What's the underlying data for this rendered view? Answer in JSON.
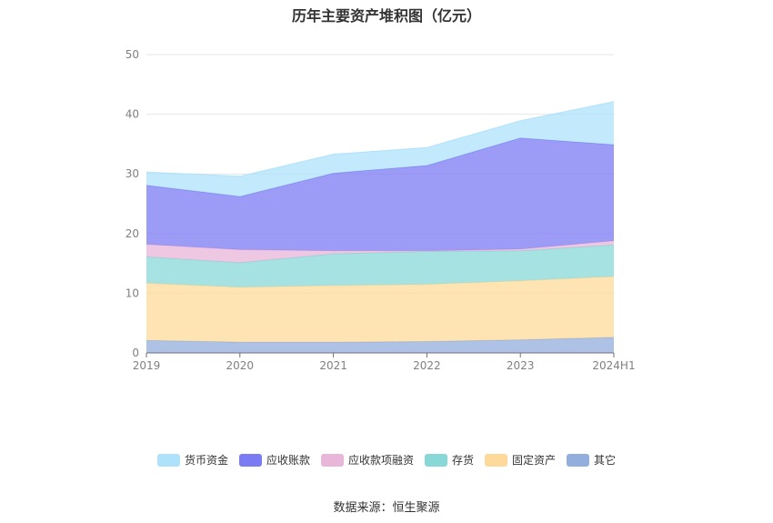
{
  "chart_data": {
    "type": "area",
    "stacked": true,
    "title": "历年主要资产堆积图（亿元）",
    "categories": [
      "2019",
      "2020",
      "2021",
      "2022",
      "2023",
      "2024H1"
    ],
    "ylim": [
      0,
      50
    ],
    "yticks": [
      0,
      10,
      20,
      30,
      40,
      50
    ],
    "grid": true,
    "legend_position": "bottom",
    "series": [
      {
        "name": "其它",
        "color": "#92aedc",
        "values": [
          2.1,
          1.8,
          1.8,
          1.9,
          2.2,
          2.6
        ]
      },
      {
        "name": "固定资产",
        "color": "#fdd99a",
        "values": [
          9.6,
          9.2,
          9.5,
          9.6,
          9.9,
          10.2
        ]
      },
      {
        "name": "存货",
        "color": "#88d8d8",
        "values": [
          4.4,
          4.1,
          5.3,
          5.5,
          5.0,
          5.3
        ]
      },
      {
        "name": "应收款项融资",
        "color": "#e8b6d8",
        "values": [
          2.1,
          2.2,
          0.5,
          0.1,
          0.3,
          0.7
        ]
      },
      {
        "name": "应收账款",
        "color": "#7b7bf4",
        "values": [
          9.9,
          8.9,
          13.0,
          14.3,
          18.6,
          16.1
        ]
      },
      {
        "name": "货币资金",
        "color": "#aee2fb",
        "values": [
          2.2,
          3.4,
          3.2,
          3.0,
          2.9,
          7.2
        ]
      }
    ]
  },
  "legend_order": [
    "货币资金",
    "应收账款",
    "应收款项融资",
    "存货",
    "固定资产",
    "其它"
  ],
  "source": "数据来源：恒生聚源"
}
